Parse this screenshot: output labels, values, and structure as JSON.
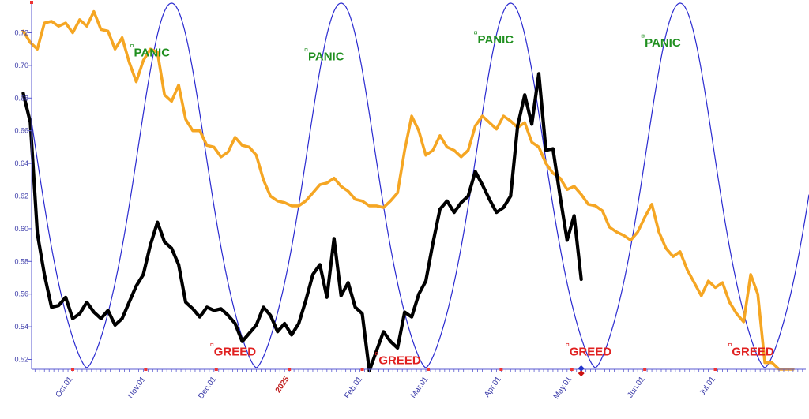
{
  "chart_data": {
    "type": "line",
    "ylim": [
      0.512,
      0.725
    ],
    "grid": false,
    "legend": "none",
    "colors": {
      "axis": "#5a5ad0",
      "tick_text": "#3a3aa8",
      "series_black": "#000000",
      "series_orange": "#f5a623",
      "cycle": "#2b2bd0",
      "panic": "#1f8f1f",
      "greed": "#e02020",
      "special_tick": "#c02020"
    },
    "y_ticks": [
      {
        "value": 0.52,
        "label": "0.52"
      },
      {
        "value": 0.54,
        "label": "0.54"
      },
      {
        "value": 0.56,
        "label": "0.56"
      },
      {
        "value": 0.58,
        "label": "0.58"
      },
      {
        "value": 0.6,
        "label": "0.60"
      },
      {
        "value": 0.62,
        "label": "0.62"
      },
      {
        "value": 0.64,
        "label": "0.64"
      },
      {
        "value": 0.66,
        "label": "0.66"
      },
      {
        "value": 0.68,
        "label": "0.68"
      },
      {
        "value": 0.7,
        "label": "0.70"
      },
      {
        "value": 0.72,
        "label": "0.72"
      }
    ],
    "x_ticks": [
      {
        "date": "2024-10-01",
        "label": "Oct.01",
        "special": false
      },
      {
        "date": "2024-11-01",
        "label": "Nov.01",
        "special": false
      },
      {
        "date": "2024-12-01",
        "label": "Dec.01",
        "special": false
      },
      {
        "date": "2025-01-01",
        "label": "2025",
        "special": true
      },
      {
        "date": "2025-02-01",
        "label": "Feb.01",
        "special": false
      },
      {
        "date": "2025-03-01",
        "label": "Mar.01",
        "special": false
      },
      {
        "date": "2025-04-01",
        "label": "Apr.01",
        "special": false
      },
      {
        "date": "2025-05-01",
        "label": "May.01",
        "special": false
      },
      {
        "date": "2025-06-01",
        "label": "Jun.01",
        "special": false
      },
      {
        "date": "2025-07-01",
        "label": "Jul.01",
        "special": false
      }
    ],
    "series": [
      {
        "key": "black",
        "x": [
          "2024-09-10",
          "2024-09-13",
          "2024-09-16",
          "2024-09-19",
          "2024-09-22",
          "2024-09-25",
          "2024-09-28",
          "2024-10-01",
          "2024-10-04",
          "2024-10-07",
          "2024-10-10",
          "2024-10-13",
          "2024-10-16",
          "2024-10-19",
          "2024-10-22",
          "2024-10-25",
          "2024-10-28",
          "2024-10-31",
          "2024-11-03",
          "2024-11-06",
          "2024-11-09",
          "2024-11-12",
          "2024-11-15",
          "2024-11-18",
          "2024-11-21",
          "2024-11-24",
          "2024-11-27",
          "2024-11-30",
          "2024-12-03",
          "2024-12-06",
          "2024-12-09",
          "2024-12-12",
          "2024-12-15",
          "2024-12-18",
          "2024-12-21",
          "2024-12-24",
          "2024-12-27",
          "2024-12-30",
          "2025-01-02",
          "2025-01-05",
          "2025-01-08",
          "2025-01-11",
          "2025-01-14",
          "2025-01-17",
          "2025-01-20",
          "2025-01-23",
          "2025-01-26",
          "2025-01-29",
          "2025-02-01",
          "2025-02-04",
          "2025-02-07",
          "2025-02-10",
          "2025-02-13",
          "2025-02-16",
          "2025-02-19",
          "2025-02-22",
          "2025-02-25",
          "2025-02-28",
          "2025-03-03",
          "2025-03-06",
          "2025-03-09",
          "2025-03-12",
          "2025-03-15",
          "2025-03-18",
          "2025-03-21",
          "2025-03-24",
          "2025-03-27",
          "2025-03-30",
          "2025-04-02",
          "2025-04-05",
          "2025-04-08",
          "2025-04-11",
          "2025-04-14",
          "2025-04-17",
          "2025-04-20",
          "2025-04-23",
          "2025-04-26",
          "2025-04-29",
          "2025-05-02",
          "2025-05-05"
        ],
        "values": [
          0.683,
          0.665,
          0.597,
          0.572,
          0.552,
          0.553,
          0.558,
          0.545,
          0.548,
          0.555,
          0.549,
          0.545,
          0.55,
          0.541,
          0.545,
          0.555,
          0.565,
          0.572,
          0.59,
          0.604,
          0.592,
          0.588,
          0.578,
          0.555,
          0.551,
          0.546,
          0.552,
          0.55,
          0.551,
          0.547,
          0.542,
          0.531,
          0.536,
          0.541,
          0.552,
          0.547,
          0.537,
          0.542,
          0.535,
          0.542,
          0.556,
          0.572,
          0.578,
          0.558,
          0.594,
          0.559,
          0.567,
          0.552,
          0.548,
          0.513,
          0.525,
          0.537,
          0.531,
          0.527,
          0.549,
          0.546,
          0.56,
          0.568,
          0.591,
          0.612,
          0.617,
          0.61,
          0.616,
          0.62,
          0.635,
          0.627,
          0.618,
          0.61,
          0.613,
          0.62,
          0.663,
          0.682,
          0.664,
          0.695,
          0.648,
          0.649,
          0.62,
          0.593,
          0.608,
          0.569
        ]
      },
      {
        "key": "orange",
        "x": [
          "2024-09-10",
          "2024-09-13",
          "2024-09-16",
          "2024-09-19",
          "2024-09-22",
          "2024-09-25",
          "2024-09-28",
          "2024-10-01",
          "2024-10-04",
          "2024-10-07",
          "2024-10-10",
          "2024-10-13",
          "2024-10-16",
          "2024-10-19",
          "2024-10-22",
          "2024-10-25",
          "2024-10-28",
          "2024-10-31",
          "2024-11-03",
          "2024-11-06",
          "2024-11-09",
          "2024-11-12",
          "2024-11-15",
          "2024-11-18",
          "2024-11-21",
          "2024-11-24",
          "2024-11-27",
          "2024-11-30",
          "2024-12-03",
          "2024-12-06",
          "2024-12-09",
          "2024-12-12",
          "2024-12-15",
          "2024-12-18",
          "2024-12-21",
          "2024-12-24",
          "2024-12-27",
          "2024-12-30",
          "2025-01-02",
          "2025-01-05",
          "2025-01-08",
          "2025-01-11",
          "2025-01-14",
          "2025-01-17",
          "2025-01-20",
          "2025-01-23",
          "2025-01-26",
          "2025-01-29",
          "2025-02-01",
          "2025-02-04",
          "2025-02-07",
          "2025-02-10",
          "2025-02-13",
          "2025-02-16",
          "2025-02-19",
          "2025-02-22",
          "2025-02-25",
          "2025-02-28",
          "2025-03-03",
          "2025-03-06",
          "2025-03-09",
          "2025-03-12",
          "2025-03-15",
          "2025-03-18",
          "2025-03-21",
          "2025-03-24",
          "2025-03-27",
          "2025-03-30",
          "2025-04-02",
          "2025-04-05",
          "2025-04-08",
          "2025-04-11",
          "2025-04-14",
          "2025-04-17",
          "2025-04-20",
          "2025-04-23",
          "2025-04-26",
          "2025-04-29",
          "2025-05-02",
          "2025-05-05",
          "2025-05-08",
          "2025-05-11",
          "2025-05-14",
          "2025-05-17",
          "2025-05-20",
          "2025-05-23",
          "2025-05-26",
          "2025-05-29",
          "2025-06-01",
          "2025-06-04",
          "2025-06-07",
          "2025-06-10",
          "2025-06-13",
          "2025-06-16",
          "2025-06-19",
          "2025-06-22",
          "2025-06-25",
          "2025-06-28",
          "2025-07-01",
          "2025-07-04",
          "2025-07-07",
          "2025-07-10",
          "2025-07-13",
          "2025-07-16",
          "2025-07-19",
          "2025-07-22",
          "2025-07-25",
          "2025-07-28",
          "2025-07-31",
          "2025-08-03"
        ],
        "values": [
          0.721,
          0.714,
          0.71,
          0.726,
          0.727,
          0.724,
          0.726,
          0.72,
          0.728,
          0.724,
          0.733,
          0.722,
          0.721,
          0.71,
          0.717,
          0.702,
          0.69,
          0.703,
          0.71,
          0.708,
          0.682,
          0.678,
          0.688,
          0.667,
          0.66,
          0.66,
          0.651,
          0.65,
          0.644,
          0.647,
          0.656,
          0.651,
          0.65,
          0.645,
          0.63,
          0.62,
          0.617,
          0.616,
          0.614,
          0.614,
          0.617,
          0.622,
          0.627,
          0.628,
          0.631,
          0.626,
          0.623,
          0.618,
          0.617,
          0.614,
          0.614,
          0.613,
          0.617,
          0.622,
          0.648,
          0.669,
          0.66,
          0.645,
          0.648,
          0.657,
          0.65,
          0.648,
          0.644,
          0.648,
          0.663,
          0.669,
          0.665,
          0.661,
          0.669,
          0.666,
          0.662,
          0.665,
          0.653,
          0.65,
          0.64,
          0.634,
          0.631,
          0.624,
          0.626,
          0.621,
          0.615,
          0.614,
          0.611,
          0.601,
          0.598,
          0.596,
          0.593,
          0.598,
          0.607,
          0.615,
          0.598,
          0.588,
          0.583,
          0.586,
          0.575,
          0.567,
          0.559,
          0.568,
          0.564,
          0.567,
          0.555,
          0.548,
          0.543,
          0.572,
          0.56,
          0.518,
          0.518,
          0.514,
          0.514,
          0.514
        ]
      }
    ],
    "cycle": {
      "description": "oscillator curve normalised to plot height",
      "period_days": 72,
      "first_trough": "2024-10-07"
    },
    "annotations": [
      {
        "type": "panic",
        "text": "PANIC",
        "date": "2024-10-27",
        "value": 0.7055
      },
      {
        "type": "panic",
        "text": "PANIC",
        "date": "2025-01-09",
        "value": 0.703
      },
      {
        "type": "panic",
        "text": "PANIC",
        "date": "2025-03-22",
        "value": 0.7135
      },
      {
        "type": "panic",
        "text": "PANIC",
        "date": "2025-06-01",
        "value": 0.7115
      },
      {
        "type": "greed",
        "text": "GREED",
        "date": "2024-11-30",
        "value": 0.5225
      },
      {
        "type": "greed",
        "text": "GREED",
        "date": "2025-02-08",
        "value": 0.517
      },
      {
        "type": "greed",
        "text": "GREED",
        "date": "2025-04-30",
        "value": 0.5225
      },
      {
        "type": "greed",
        "text": "GREED",
        "date": "2025-07-08",
        "value": 0.5225
      }
    ],
    "markers": [
      {
        "shape": "diamond",
        "color": "#2233cc",
        "date": "2025-05-05",
        "value": 0.5145
      },
      {
        "shape": "diamond",
        "color": "#cc1111",
        "date": "2025-05-05",
        "value": 0.5115
      }
    ]
  }
}
